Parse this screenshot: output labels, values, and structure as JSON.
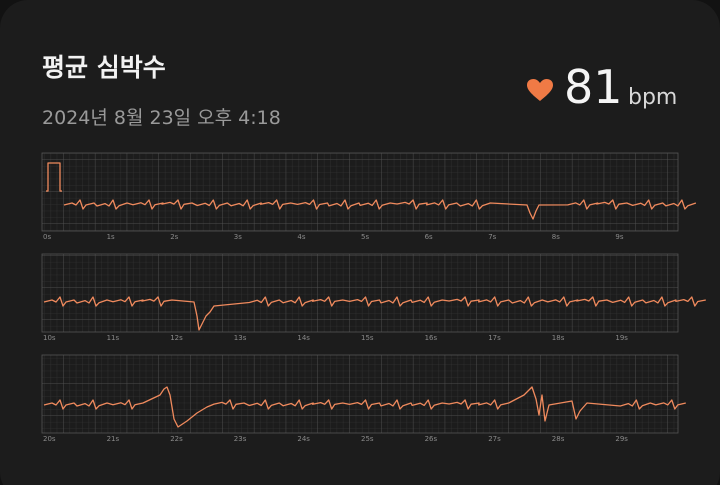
{
  "header": {
    "title": "평균 심박수",
    "timestamp": "2024년 8월 23일 오후 4:18"
  },
  "heart_rate": {
    "value": 81,
    "unit": "bpm"
  },
  "strips": [
    {
      "time_labels": [
        "0s",
        "1s",
        "2s",
        "3s",
        "4s",
        "5s",
        "6s",
        "7s",
        "8s",
        "9s"
      ]
    },
    {
      "time_labels": [
        "10s",
        "11s",
        "12s",
        "13s",
        "14s",
        "15s",
        "16s",
        "17s",
        "18s",
        "19s"
      ]
    },
    {
      "time_labels": [
        "20s",
        "21s",
        "22s",
        "23s",
        "24s",
        "25s",
        "26s",
        "27s",
        "28s",
        "29s"
      ]
    }
  ]
}
